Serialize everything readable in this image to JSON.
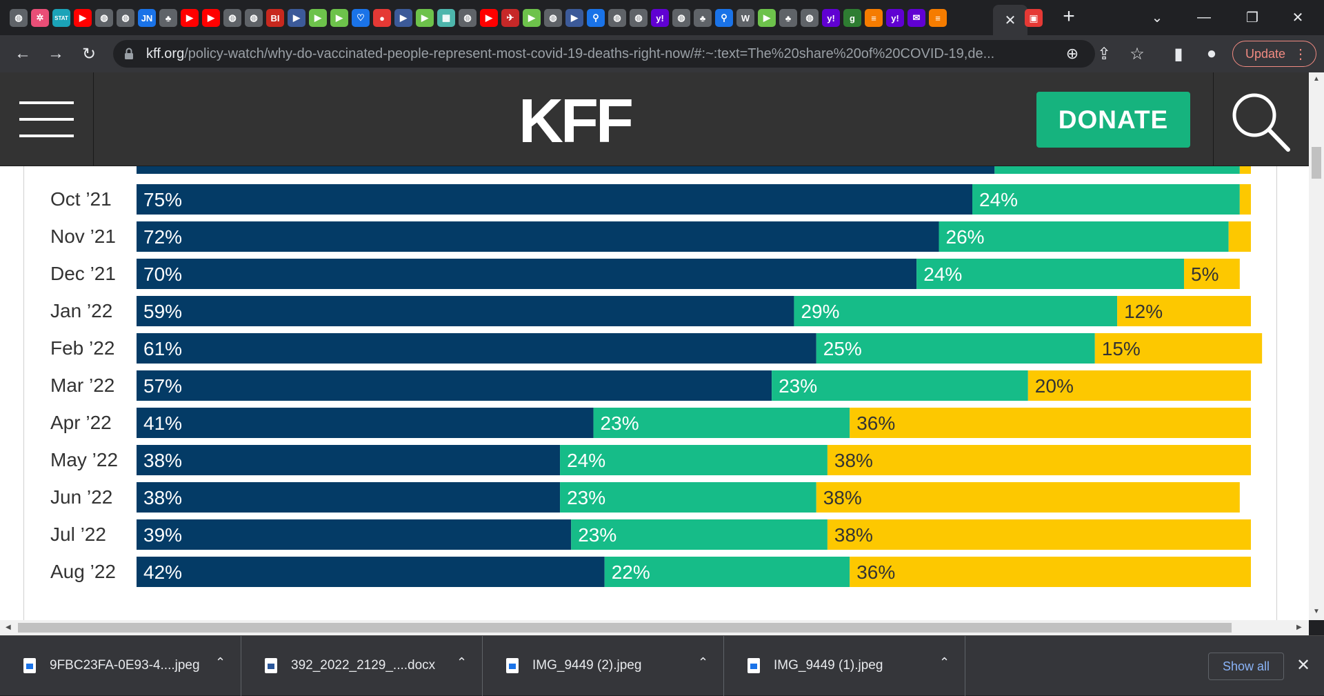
{
  "browser": {
    "url_host": "kff.org",
    "url_path": "/policy-watch/why-do-vaccinated-people-represent-most-covid-19-deaths-right-now/#:~:text=The%20share%20of%20COVID-19,de...",
    "update_label": "Update",
    "tab_close_glyph": "✕",
    "new_tab_glyph": "+",
    "tab_icons": [
      {
        "name": "globe-icon",
        "color": "#5f6368",
        "glyph": "◍"
      },
      {
        "name": "pinwheel-icon",
        "color": "#e94e77",
        "glyph": "✲"
      },
      {
        "name": "stat-icon",
        "color": "#1ba3b8",
        "glyph": "STAT"
      },
      {
        "name": "youtube-icon",
        "color": "#ff0000",
        "glyph": "▶"
      },
      {
        "name": "globe-icon",
        "color": "#5f6368",
        "glyph": "◍"
      },
      {
        "name": "globe-icon",
        "color": "#5f6368",
        "glyph": "◍"
      },
      {
        "name": "jn-icon",
        "color": "#1a73e8",
        "glyph": "JN"
      },
      {
        "name": "tree-icon",
        "color": "#5f6368",
        "glyph": "♣"
      },
      {
        "name": "youtube-icon",
        "color": "#ff0000",
        "glyph": "▶"
      },
      {
        "name": "youtube-icon",
        "color": "#ff0000",
        "glyph": "▶"
      },
      {
        "name": "globe-icon",
        "color": "#5f6368",
        "glyph": "◍"
      },
      {
        "name": "globe-icon",
        "color": "#5f6368",
        "glyph": "◍"
      },
      {
        "name": "bi-icon",
        "color": "#c8281e",
        "glyph": "BI"
      },
      {
        "name": "arrow-icon",
        "color": "#3c5a99",
        "glyph": "▶"
      },
      {
        "name": "play-icon",
        "color": "#6dc24b",
        "glyph": "▶"
      },
      {
        "name": "play-icon",
        "color": "#6dc24b",
        "glyph": "▶"
      },
      {
        "name": "heart-icon",
        "color": "#1a73e8",
        "glyph": "♡"
      },
      {
        "name": "mic-icon",
        "color": "#e53935",
        "glyph": "●"
      },
      {
        "name": "arrow-icon",
        "color": "#3c5a99",
        "glyph": "▶"
      },
      {
        "name": "play-icon",
        "color": "#6dc24b",
        "glyph": "▶"
      },
      {
        "name": "grid-icon",
        "color": "#4db6ac",
        "glyph": "▦"
      },
      {
        "name": "globe-icon",
        "color": "#5f6368",
        "glyph": "◍"
      },
      {
        "name": "youtube-icon",
        "color": "#ff0000",
        "glyph": "▶"
      },
      {
        "name": "plane-icon",
        "color": "#c62828",
        "glyph": "✈"
      },
      {
        "name": "play-icon",
        "color": "#6dc24b",
        "glyph": "▶"
      },
      {
        "name": "globe-icon",
        "color": "#5f6368",
        "glyph": "◍"
      },
      {
        "name": "arrow-icon",
        "color": "#3c5a99",
        "glyph": "▶"
      },
      {
        "name": "search-icon",
        "color": "#1a73e8",
        "glyph": "⚲"
      },
      {
        "name": "globe-icon",
        "color": "#5f6368",
        "glyph": "◍"
      },
      {
        "name": "globe-icon",
        "color": "#5f6368",
        "glyph": "◍"
      },
      {
        "name": "yahoo-icon",
        "color": "#6001d2",
        "glyph": "y!"
      },
      {
        "name": "globe-icon",
        "color": "#5f6368",
        "glyph": "◍"
      },
      {
        "name": "tree-icon",
        "color": "#5f6368",
        "glyph": "♣"
      },
      {
        "name": "search-icon",
        "color": "#1a73e8",
        "glyph": "⚲"
      },
      {
        "name": "wiki-icon",
        "color": "#5f6368",
        "glyph": "W"
      },
      {
        "name": "play-icon",
        "color": "#6dc24b",
        "glyph": "▶"
      },
      {
        "name": "tree-icon",
        "color": "#5f6368",
        "glyph": "♣"
      },
      {
        "name": "globe-icon",
        "color": "#5f6368",
        "glyph": "◍"
      },
      {
        "name": "yahoo-icon",
        "color": "#6001d2",
        "glyph": "y!"
      },
      {
        "name": "g-icon",
        "color": "#2e7d32",
        "glyph": "g"
      },
      {
        "name": "bookmark-icon",
        "color": "#f57c00",
        "glyph": "≡"
      },
      {
        "name": "yahoo-icon",
        "color": "#6001d2",
        "glyph": "y!"
      },
      {
        "name": "mail-icon",
        "color": "#6001d2",
        "glyph": "✉"
      },
      {
        "name": "bookmark-icon",
        "color": "#f57c00",
        "glyph": "≡"
      }
    ],
    "after_active_icon": {
      "name": "inbox-icon",
      "color": "#e53935",
      "glyph": "▣"
    }
  },
  "site": {
    "logo": "KFF",
    "donate_label": "DONATE"
  },
  "chart_data": {
    "type": "bar",
    "orientation": "horizontal",
    "stacked": true,
    "categories": [
      "Oct ’21",
      "Nov ’21",
      "Dec ’21",
      "Jan ’22",
      "Feb ’22",
      "Mar ’22",
      "Apr ’22",
      "May ’22",
      "Jun ’22",
      "Jul ’22",
      "Aug ’22"
    ],
    "series": [
      {
        "color": "#043b66",
        "values": [
          75,
          72,
          70,
          59,
          61,
          57,
          41,
          38,
          38,
          39,
          42
        ],
        "labels": [
          "75%",
          "72%",
          "70%",
          "59%",
          "61%",
          "57%",
          "41%",
          "38%",
          "38%",
          "39%",
          "42%"
        ]
      },
      {
        "color": "#16bc88",
        "values": [
          24,
          26,
          24,
          29,
          25,
          23,
          23,
          24,
          23,
          23,
          22
        ],
        "labels": [
          "24%",
          "26%",
          "24%",
          "29%",
          "25%",
          "23%",
          "23%",
          "24%",
          "23%",
          "23%",
          "22%"
        ]
      },
      {
        "color": "#fdc800",
        "values": [
          1,
          2,
          5,
          12,
          15,
          20,
          36,
          38,
          38,
          38,
          36
        ],
        "labels": [
          "",
          "",
          "5%",
          "12%",
          "15%",
          "20%",
          "36%",
          "38%",
          "38%",
          "38%",
          "36%"
        ]
      }
    ],
    "partial_top_row": {
      "values": [
        77,
        22,
        1
      ]
    },
    "xlim": [
      0,
      100
    ]
  },
  "downloads": {
    "items": [
      {
        "name": "9FBC23FA-0E93-4....jpeg",
        "type": "image"
      },
      {
        "name": "392_2022_2129_....docx",
        "type": "word"
      },
      {
        "name": "IMG_9449 (2).jpeg",
        "type": "image"
      },
      {
        "name": "IMG_9449 (1).jpeg",
        "type": "image"
      }
    ],
    "show_all_label": "Show all"
  }
}
